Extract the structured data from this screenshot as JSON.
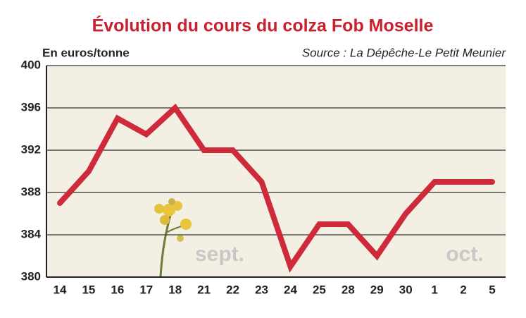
{
  "chart_data": {
    "type": "line",
    "title": "Évolution du cours du colza Fob Moselle",
    "y_label": "En euros/tonne",
    "source": "Source : La Dépêche-Le Petit Meunier",
    "annotations": [
      "sept.",
      "oct."
    ],
    "categories": [
      "14",
      "15",
      "16",
      "17",
      "18",
      "21",
      "22",
      "23",
      "24",
      "25",
      "28",
      "29",
      "30",
      "1",
      "2",
      "5"
    ],
    "values": [
      387,
      390,
      395,
      393.5,
      396,
      392,
      392,
      389,
      381,
      385,
      385,
      382,
      386,
      389,
      389,
      389
    ],
    "color": "#cf2a3b",
    "ylim": [
      380,
      400
    ],
    "yticks": [
      380,
      384,
      388,
      392,
      396,
      400
    ],
    "grid": true
  }
}
